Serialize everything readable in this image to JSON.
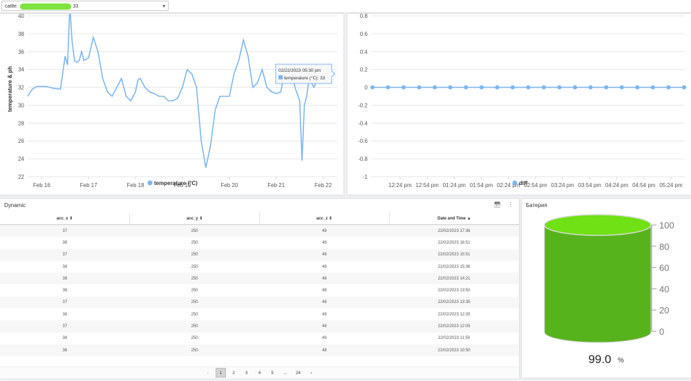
{
  "selector": {
    "label": "cattle:",
    "value_suffix": "33",
    "caret": "▾"
  },
  "chart_data": [
    {
      "type": "line",
      "title": "",
      "xlabel": "",
      "ylabel": "temperature & ph",
      "ylim": [
        22,
        40
      ],
      "yticks": [
        22,
        24,
        26,
        28,
        30,
        32,
        34,
        36,
        38,
        40
      ],
      "xticks": [
        "Feb 16",
        "Feb 17",
        "Feb 18",
        "Feb 19",
        "Feb 20",
        "Feb 21",
        "Feb 22"
      ],
      "xlim_days": [
        15.7,
        22.3
      ],
      "legend": "bottom-center",
      "grid": true,
      "series": [
        {
          "name": "temperature (°C)",
          "color": "#7cb5ec",
          "x": [
            15.7,
            15.8,
            15.9,
            16.1,
            16.25,
            16.4,
            16.5,
            16.55,
            16.6,
            16.65,
            16.7,
            16.75,
            16.8,
            16.85,
            16.9,
            17.0,
            17.1,
            17.2,
            17.3,
            17.4,
            17.5,
            17.6,
            17.7,
            17.8,
            17.9,
            18.0,
            18.05,
            18.1,
            18.2,
            18.3,
            18.4,
            18.5,
            18.6,
            18.7,
            18.8,
            18.9,
            19.0,
            19.1,
            19.2,
            19.3,
            19.4,
            19.5,
            19.6,
            19.7,
            19.8,
            19.9,
            20.0,
            20.1,
            20.2,
            20.3,
            20.4,
            20.5,
            20.6,
            20.7,
            20.8,
            20.9,
            21.0,
            21.1,
            21.2,
            21.3,
            21.4,
            21.5,
            21.55,
            21.6,
            21.65,
            21.7,
            21.8,
            21.9
          ],
          "y": [
            31.0,
            31.8,
            32.1,
            32.1,
            31.9,
            31.8,
            35.5,
            34.5,
            41.0,
            37.0,
            35.0,
            34.8,
            35.0,
            36.0,
            35.0,
            35.3,
            37.6,
            36.0,
            33.0,
            31.5,
            31.0,
            32.0,
            33.0,
            31.0,
            30.5,
            31.5,
            32.8,
            33.0,
            32.0,
            31.5,
            31.3,
            31.0,
            31.0,
            30.5,
            30.5,
            30.8,
            32.0,
            34.0,
            33.5,
            32.0,
            26.0,
            23.0,
            25.5,
            29.5,
            31.0,
            31.0,
            31.0,
            33.5,
            35.0,
            37.3,
            35.5,
            32.0,
            32.5,
            34.0,
            32.0,
            31.5,
            31.3,
            31.5,
            34.5,
            34.5,
            32.0,
            30.5,
            23.8,
            30.0,
            31.0,
            33.0,
            32.0,
            33.0
          ]
        }
      ],
      "tooltip": {
        "date": "02/22/2023 05:30 pm",
        "label": "temperature (°C): 33"
      }
    },
    {
      "type": "line",
      "title": "",
      "xlabel": "",
      "ylabel": "",
      "ylim": [
        -1,
        0.8
      ],
      "yticks": [
        "-1",
        "-0.8",
        "-0.6",
        "-0.4",
        "-0.2",
        "0",
        "0.2",
        "0.4",
        "0.6",
        "0.8"
      ],
      "xticks": [
        "12:24 pm",
        "12:54 pm",
        "01:24 pm",
        "01:54 pm",
        "02:24 pm",
        "02:54 pm",
        "03:24 pm",
        "03:54 pm",
        "04:24 pm",
        "04:54 pm",
        "05:24 pm"
      ],
      "legend": "bottom-center",
      "grid": true,
      "series": [
        {
          "name": "diff",
          "color": "#7cb5ec",
          "point_count": 21,
          "values": [
            0,
            0,
            0,
            0,
            0,
            0,
            0,
            0,
            0,
            0,
            0,
            0,
            0,
            0,
            0,
            0,
            0,
            0,
            0,
            0,
            0
          ]
        }
      ]
    },
    {
      "type": "gauge",
      "title": "Батерия",
      "value": 99.0,
      "value_text": "99.0",
      "unit": "%",
      "scale": [
        "100",
        "80",
        "60",
        "40",
        "20",
        "0"
      ],
      "fill_color": "#57b31b",
      "top_color": "#6fe114"
    }
  ],
  "table_panel": {
    "title": "Dynamic",
    "tool_icons": [
      "calendar-icon",
      "more-vert-icon"
    ],
    "columns": [
      "acc_x",
      "acc_y",
      "acc_z",
      "Date and Time"
    ],
    "sort_marks": [
      "⇕",
      "⇕",
      "⇕",
      "▲"
    ],
    "rows": [
      [
        "37",
        "250",
        "49",
        "22/02/2023 17:36"
      ],
      [
        "38",
        "250",
        "48",
        "22/02/2023 16:51"
      ],
      [
        "37",
        "250",
        "48",
        "22/02/2023 15:51"
      ],
      [
        "38",
        "250",
        "48",
        "22/02/2023 15:36"
      ],
      [
        "38",
        "250",
        "48",
        "22/02/2023 14:21"
      ],
      [
        "38",
        "250",
        "48",
        "22/02/2023 13:50"
      ],
      [
        "37",
        "250",
        "48",
        "22/02/2023 13:35"
      ],
      [
        "38",
        "250",
        "49",
        "22/02/2023 12:35"
      ],
      [
        "37",
        "250",
        "48",
        "22/02/2023 12:05"
      ],
      [
        "38",
        "250",
        "49",
        "22/02/2023 11:50"
      ],
      [
        "38",
        "250",
        "48",
        "22/02/2023 10:50"
      ]
    ],
    "pagination": {
      "prev": "‹",
      "pages": [
        "1",
        "2",
        "3",
        "4",
        "5",
        "...",
        "24"
      ],
      "next": "›",
      "active": "1"
    }
  }
}
